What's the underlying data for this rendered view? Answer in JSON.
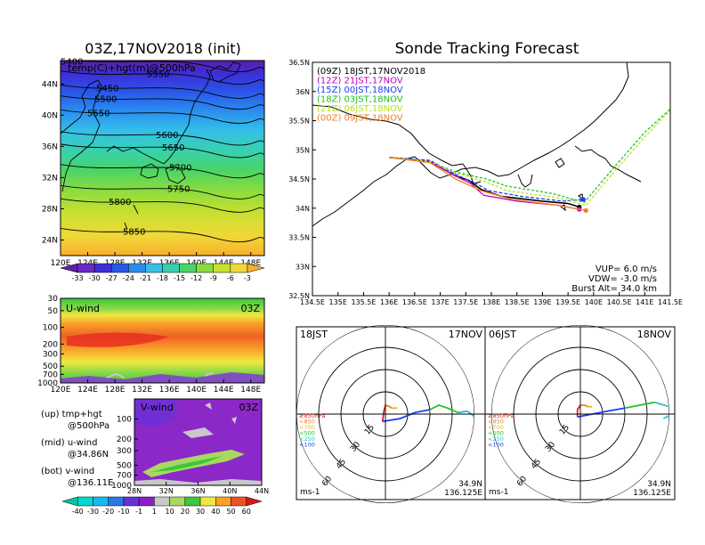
{
  "main_title": "03Z,17NOV2018 (init)",
  "tracking_title": "Sonde Tracking Forecast",
  "chart_data": [
    {
      "type": "heatmap",
      "name": "temp-hgt-500hPa-map",
      "overlay_label": "temp(C)+hgt(m)@500hPa",
      "x_ticks": [
        "120E",
        "124E",
        "128E",
        "132E",
        "136E",
        "140E",
        "144E",
        "148E"
      ],
      "y_ticks": [
        "24N",
        "28N",
        "32N",
        "36N",
        "40N",
        "44N"
      ],
      "xlim": [
        120,
        150
      ],
      "ylim": [
        22,
        47
      ],
      "contours": [
        {
          "label": "5400",
          "lat": 46.6
        },
        {
          "label": "5350",
          "lat": 45.0
        },
        {
          "label": "5450",
          "lat": 43.2
        },
        {
          "label": "5500",
          "lat": 41.8
        },
        {
          "label": "5550",
          "lat": 40.0
        },
        {
          "label": "5600",
          "lat": 37.2
        },
        {
          "label": "5650",
          "lat": 35.6
        },
        {
          "label": "5700",
          "lat": 33.0
        },
        {
          "label": "5750",
          "lat": 30.3
        },
        {
          "label": "5800",
          "lat": 28.6
        },
        {
          "label": "5850",
          "lat": 24.8
        }
      ],
      "colorbar_labels": [
        "-33",
        "-30",
        "-27",
        "-24",
        "-21",
        "-18",
        "-15",
        "-12",
        "-9",
        "-6",
        "-3"
      ],
      "colorbar_colors": [
        "#5a1fa8",
        "#6a28c8",
        "#3c2fd8",
        "#2a56e8",
        "#2a8ef0",
        "#34c0e8",
        "#38d0b0",
        "#48d468",
        "#88dc40",
        "#c8e030",
        "#f0d838",
        "#f8b02c"
      ]
    },
    {
      "type": "heatmap",
      "name": "u-wind-cross-section",
      "panel_label": "U-wind",
      "time_label": "03Z",
      "x_ticks": [
        "120E",
        "124E",
        "128E",
        "132E",
        "136E",
        "140E",
        "144E",
        "148E"
      ],
      "y_ticks": [
        "30",
        "50",
        "100",
        "200",
        "300",
        "500",
        "700",
        "1000"
      ]
    },
    {
      "type": "heatmap",
      "name": "v-wind-cross-section",
      "panel_label": "V-wind",
      "time_label": "03Z",
      "x_ticks": [
        "28N",
        "32N",
        "36N",
        "40N",
        "44N"
      ],
      "y_ticks": [
        "100",
        "200",
        "300",
        "500",
        "700",
        "1000"
      ],
      "colorbar_labels": [
        "-40",
        "-30",
        "-20",
        "-10",
        "-1",
        "1",
        "10",
        "20",
        "30",
        "40",
        "50",
        "60"
      ],
      "colorbar_colors": [
        "#00c8a0",
        "#00d8d0",
        "#18b8f0",
        "#2a78e8",
        "#6432d8",
        "#8c1ec8",
        "#c8c8c8",
        "#a8d860",
        "#3cc83c",
        "#f0e840",
        "#f8a028",
        "#f05028",
        "#d81818"
      ]
    },
    {
      "type": "line",
      "name": "sonde-tracking-map",
      "x_ticks": [
        "134.5E",
        "135E",
        "135.5E",
        "136E",
        "136.5E",
        "137E",
        "137.5E",
        "138E",
        "138.5E",
        "139E",
        "139.5E",
        "140E",
        "140.5E",
        "141E",
        "141.5E"
      ],
      "y_ticks": [
        "32.5N",
        "33N",
        "33.5N",
        "34N",
        "34.5N",
        "35N",
        "35.5N",
        "36N",
        "36.5N"
      ],
      "xlim": [
        134.5,
        141.5
      ],
      "ylim": [
        32.5,
        36.5
      ],
      "series": [
        {
          "name": "(09Z)  18JST,17NOV2018",
          "color": "#000000",
          "points": [
            [
              136.0,
              34.87
            ],
            [
              136.8,
              34.8
            ],
            [
              137.3,
              34.55
            ],
            [
              137.55,
              34.48
            ],
            [
              137.8,
              34.32
            ],
            [
              138.2,
              34.2
            ],
            [
              139.0,
              34.12
            ],
            [
              139.5,
              34.08
            ],
            [
              139.72,
              34.02
            ]
          ]
        },
        {
          "name": "(12Z)  21JST,17NOV",
          "color": "#c000c0",
          "points": [
            [
              136.0,
              34.87
            ],
            [
              136.8,
              34.8
            ],
            [
              137.3,
              34.55
            ],
            [
              137.6,
              34.42
            ],
            [
              137.85,
              34.22
            ],
            [
              138.5,
              34.12
            ],
            [
              139.3,
              34.05
            ],
            [
              139.72,
              33.98
            ]
          ]
        },
        {
          "name": "(15Z)  00JST,18NOV",
          "color": "#2040f0",
          "points": [
            [
              136.0,
              34.87
            ],
            [
              136.8,
              34.82
            ],
            [
              137.3,
              34.58
            ],
            [
              137.7,
              34.42
            ],
            [
              137.95,
              34.3
            ],
            [
              138.6,
              34.2
            ],
            [
              139.4,
              34.12
            ],
            [
              139.78,
              34.15
            ]
          ]
        },
        {
          "name": "(18Z)  03JST,18NOV",
          "color": "#20c020",
          "points": [
            [
              136.0,
              34.87
            ],
            [
              136.8,
              34.8
            ],
            [
              137.3,
              34.62
            ],
            [
              137.9,
              34.5
            ],
            [
              138.3,
              34.38
            ],
            [
              139.2,
              34.25
            ],
            [
              139.82,
              34.1
            ],
            [
              140.4,
              34.7
            ],
            [
              141.0,
              35.3
            ],
            [
              141.5,
              35.7
            ]
          ]
        },
        {
          "name": "(21Z)  06JST,18NOV",
          "color": "#b8e020",
          "points": [
            [
              136.0,
              34.87
            ],
            [
              136.8,
              34.8
            ],
            [
              137.3,
              34.6
            ],
            [
              137.9,
              34.45
            ],
            [
              138.3,
              34.3
            ],
            [
              139.3,
              34.18
            ],
            [
              139.85,
              34.05
            ],
            [
              140.4,
              34.62
            ],
            [
              141.0,
              35.22
            ],
            [
              141.5,
              35.68
            ]
          ]
        },
        {
          "name": "(00Z)  09JST,18NOV",
          "color": "#f08020",
          "points": [
            [
              136.0,
              34.87
            ],
            [
              136.8,
              34.78
            ],
            [
              137.3,
              34.5
            ],
            [
              137.8,
              34.3
            ],
            [
              138.4,
              34.15
            ],
            [
              139.3,
              34.05
            ],
            [
              139.85,
              33.96
            ]
          ]
        }
      ],
      "params": {
        "vup": "VUP=  6.0 m/s",
        "vdw": "VDW= -3.0 m/s",
        "burst": "Burst Alt= 34.0 km"
      }
    },
    {
      "type": "scatter",
      "name": "hodograph-18jst",
      "time_label": "18JST",
      "date_label": "17NOV",
      "ring_labels": [
        "15",
        "30",
        "45",
        "60"
      ],
      "unit_label": "ms-1",
      "lat_label": "34.9N",
      "lon_label": "136.125E",
      "level_legend": [
        {
          "label": "≥850hPa",
          "color": "#e02020"
        },
        {
          "label": "<850",
          "color": "#f08020"
        },
        {
          "label": "<700",
          "color": "#d8c020"
        },
        {
          "label": "<500",
          "color": "#20c020"
        },
        {
          "label": "<250",
          "color": "#20c0d0"
        },
        {
          "label": "<100",
          "color": "#2040f0"
        }
      ],
      "segments": [
        {
          "color": "#e02020",
          "points": [
            [
              -2,
              -5
            ],
            [
              -1,
              2
            ],
            [
              0,
              6
            ]
          ]
        },
        {
          "color": "#f08020",
          "points": [
            [
              0,
              6
            ],
            [
              3,
              5
            ],
            [
              4,
              4
            ]
          ]
        },
        {
          "color": "#d8c020",
          "points": [
            [
              4,
              4
            ],
            [
              8,
              4
            ]
          ]
        },
        {
          "color": "#2040f0",
          "points": [
            [
              -2,
              -5
            ],
            [
              10,
              -3
            ],
            [
              20,
              1
            ],
            [
              30,
              3
            ]
          ]
        },
        {
          "color": "#20c020",
          "points": [
            [
              30,
              3
            ],
            [
              36,
              6
            ],
            [
              42,
              4
            ],
            [
              49,
              1
            ]
          ]
        },
        {
          "color": "#20c0d0",
          "points": [
            [
              49,
              1
            ],
            [
              55,
              2
            ],
            [
              58,
              0
            ],
            [
              60,
              -2
            ]
          ]
        }
      ]
    },
    {
      "type": "scatter",
      "name": "hodograph-06jst",
      "time_label": "06JST",
      "date_label": "18NOV",
      "ring_labels": [
        "15",
        "30",
        "45",
        "60"
      ],
      "unit_label": "ms-1",
      "lat_label": "34.9N",
      "lon_label": "136.125E",
      "level_legend": [
        {
          "label": "≥850hPa",
          "color": "#e02020"
        },
        {
          "label": "<850",
          "color": "#f08020"
        },
        {
          "label": "<700",
          "color": "#d8c020"
        },
        {
          "label": "<500",
          "color": "#20c020"
        },
        {
          "label": "<250",
          "color": "#20c0d0"
        },
        {
          "label": "<100",
          "color": "#2040f0"
        }
      ],
      "segments": [
        {
          "color": "#e02020",
          "points": [
            [
              -2,
              -2
            ],
            [
              -2,
              3
            ],
            [
              0,
              6
            ]
          ]
        },
        {
          "color": "#f08020",
          "points": [
            [
              0,
              6
            ],
            [
              3,
              6
            ],
            [
              5,
              5
            ]
          ]
        },
        {
          "color": "#d8c020",
          "points": [
            [
              5,
              5
            ],
            [
              8,
              5
            ]
          ]
        },
        {
          "color": "#2040f0",
          "points": [
            [
              -2,
              -2
            ],
            [
              8,
              0
            ],
            [
              18,
              2
            ],
            [
              30,
              4
            ]
          ]
        },
        {
          "color": "#20c020",
          "points": [
            [
              30,
              4
            ],
            [
              40,
              6
            ],
            [
              50,
              8
            ]
          ]
        },
        {
          "color": "#20c0d0",
          "points": [
            [
              50,
              8
            ],
            [
              60,
              5
            ],
            [
              62,
              0
            ],
            [
              56,
              -3
            ]
          ]
        }
      ]
    }
  ],
  "side_legend": {
    "up": "(up) tmp+hgt",
    "up_sub": "@500hPa",
    "mid": "(mid) u-wind",
    "mid_sub": "@34.86N",
    "bot": "(bot) v-wind",
    "bot_sub": "@136.11E"
  }
}
